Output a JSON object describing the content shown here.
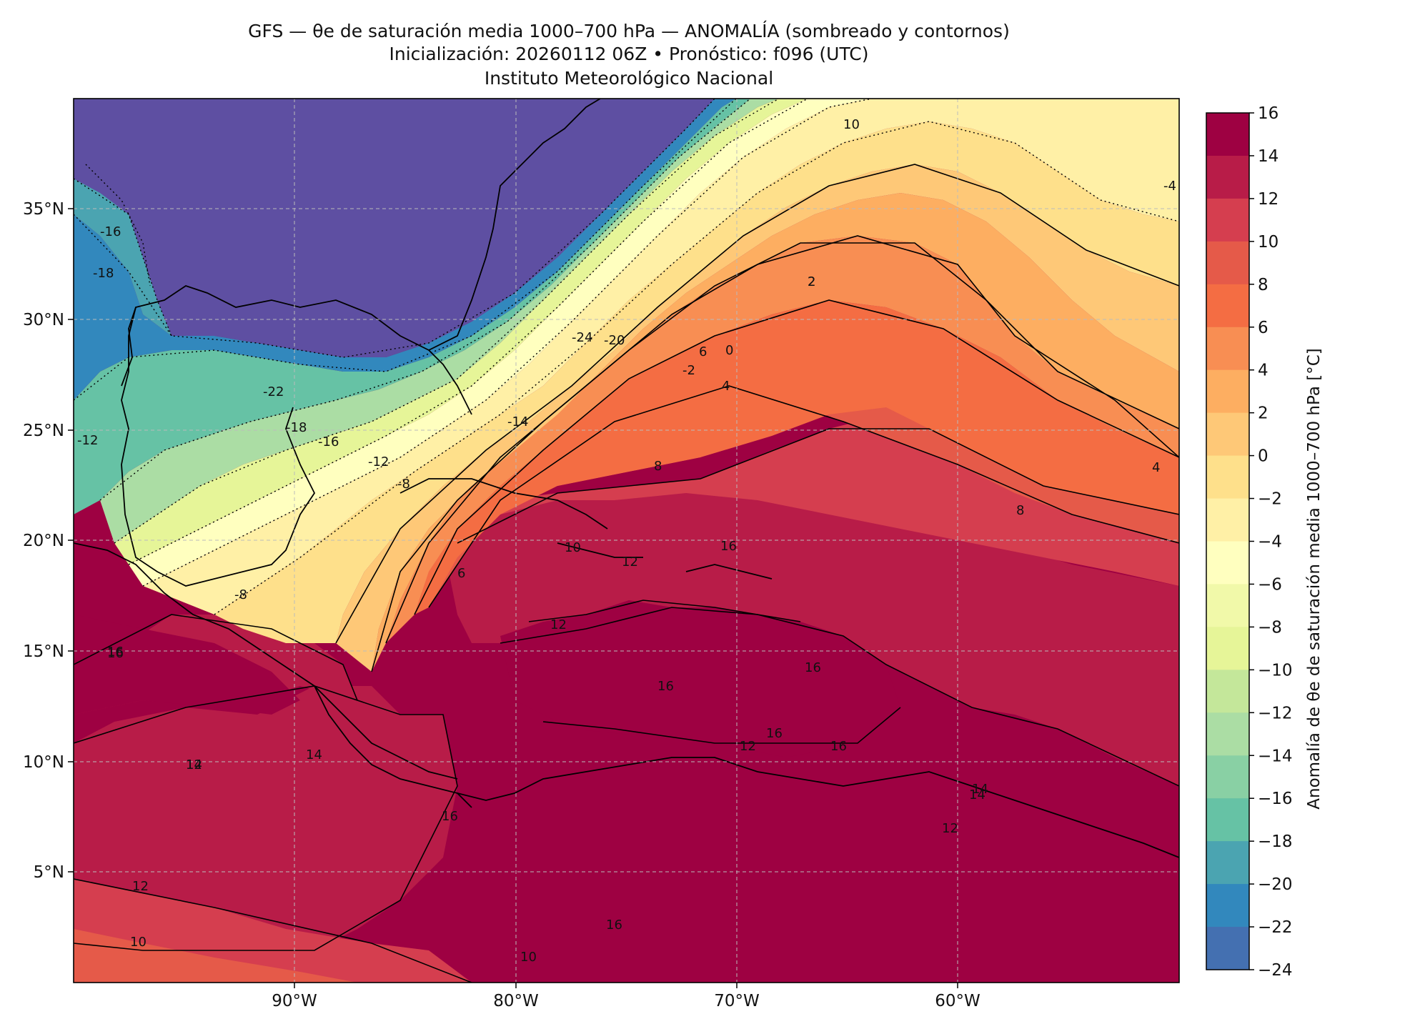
{
  "title": {
    "line1": "GFS — θe de saturación media 1000–700 hPa — ANOMALÍA (sombreado y contornos)",
    "line2": "Inicialización: 20260112 06Z   •   Pronóstico: f096 (UTC)",
    "line3": "Instituto Meteorológico Nacional"
  },
  "map": {
    "lon_range": [
      -100,
      -50
    ],
    "lat_range": [
      0,
      40
    ],
    "lon_ticks": [
      "90°W",
      "80°W",
      "70°W",
      "60°W"
    ],
    "lat_ticks": [
      "35°N",
      "30°N",
      "25°N",
      "20°N",
      "15°N",
      "10°N",
      "5°N"
    ],
    "gridlines": true,
    "contour_labels": [
      "-24",
      "-22",
      "-20",
      "-18",
      "-16",
      "-14",
      "-12",
      "-8",
      "-4",
      "-2",
      "0",
      "2",
      "4",
      "6",
      "8",
      "10",
      "12",
      "14",
      "16",
      "-16",
      "-18",
      "-12",
      "-8",
      "2",
      "4",
      "6",
      "8",
      "10",
      "12",
      "16",
      "16",
      "16",
      "14",
      "12",
      "10",
      "16",
      "14",
      "12",
      "16",
      "16",
      "16",
      "12",
      "10",
      "16",
      "14",
      "12"
    ],
    "colors": {
      "land_coast": "#000000",
      "grid": "#bbbbbb"
    }
  },
  "colorbar": {
    "label": "Anomalía de θe de saturación media 1000–700 hPa [°C]",
    "ticks": [
      "16",
      "14",
      "12",
      "10",
      "8",
      "6",
      "4",
      "2",
      "0",
      "−2",
      "−4",
      "−6",
      "−8",
      "−10",
      "−12",
      "−14",
      "−16",
      "−18",
      "−20",
      "−22",
      "−24"
    ],
    "levels_colors": [
      "#9e0142",
      "#b81c48",
      "#d53e4f",
      "#e55a49",
      "#f46d43",
      "#f88e53",
      "#fdae61",
      "#fec877",
      "#fee08b",
      "#fff0a6",
      "#ffffbf",
      "#f1f9a9",
      "#e6f598",
      "#c4e79a",
      "#abdda4",
      "#89d0a4",
      "#66c2a5",
      "#4ba4b1",
      "#3288bd",
      "#4470b1",
      "#5e4fa2"
    ]
  }
}
